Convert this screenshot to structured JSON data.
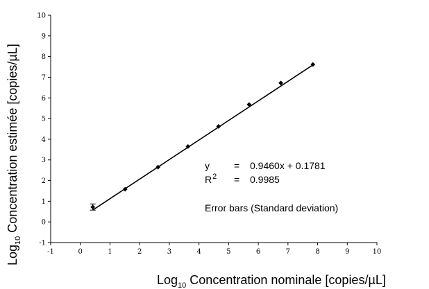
{
  "chart_data": {
    "type": "scatter",
    "xlabel": {
      "prefix": "Log",
      "sub": "10",
      "text": " Concentration nominale [copies/µL]"
    },
    "ylabel": {
      "prefix": "Log",
      "sub": "10",
      "text": " Concentration estimée [copies/µL]"
    },
    "xlim": [
      -1,
      10
    ],
    "ylim": [
      -1,
      10
    ],
    "x_ticks": [
      -1,
      0,
      1,
      2,
      3,
      4,
      5,
      6,
      7,
      8,
      9,
      10
    ],
    "y_ticks": [
      -1,
      0,
      1,
      2,
      3,
      4,
      5,
      6,
      7,
      8,
      9,
      10
    ],
    "grid": false,
    "series": [
      {
        "x": [
          0.42,
          1.51,
          2.62,
          3.63,
          4.66,
          5.69,
          6.76,
          7.84
        ],
        "y": [
          0.72,
          1.58,
          2.65,
          3.65,
          4.62,
          5.68,
          6.72,
          7.62
        ],
        "yerr": [
          0.15,
          0,
          0,
          0,
          0,
          0,
          0,
          0
        ]
      }
    ],
    "fit": {
      "slope": 0.946,
      "intercept": 0.1781,
      "x_range": [
        0.42,
        7.84
      ]
    },
    "annotations": {
      "eq_lhs": "y",
      "eq_eq": "=",
      "eq_rhs": "0.9460x + 0.1781",
      "r2_lhs": "R",
      "r2_sup": "2",
      "r2_eq": "=",
      "r2_rhs": "0.9985",
      "error_note": "Error bars (Standard deviation)"
    },
    "colors": {
      "axis": "#000000",
      "marker": "#000000",
      "line": "#000000"
    }
  }
}
